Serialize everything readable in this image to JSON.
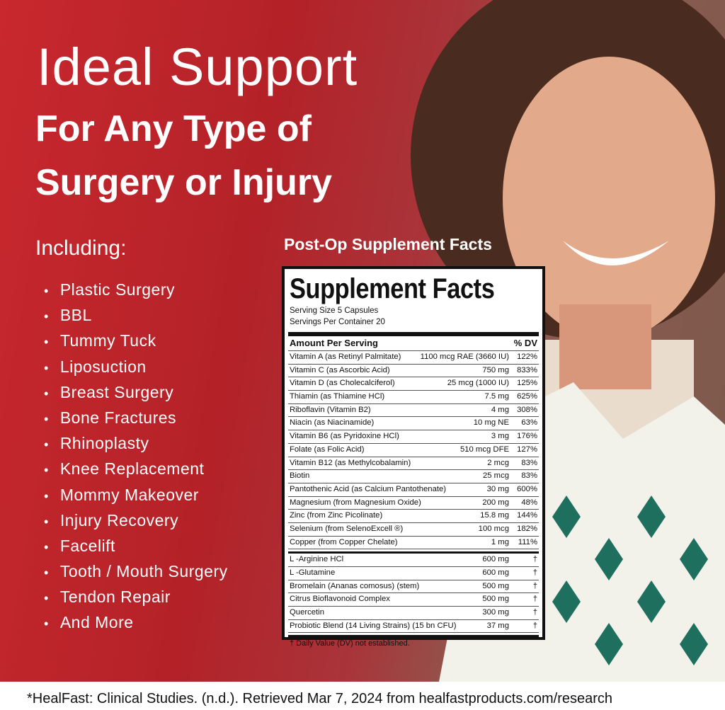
{
  "header": {
    "title": "Ideal Support",
    "subtitle_line1": "For Any Type of",
    "subtitle_line2": "Surgery or Injury"
  },
  "including": {
    "label": "Including:",
    "items": [
      "Plastic Surgery",
      "BBL",
      "Tummy Tuck",
      "Liposuction",
      "Breast Surgery",
      "Bone Fractures",
      "Rhinoplasty",
      "Knee Replacement",
      "Mommy Makeover",
      "Injury Recovery",
      "Facelift",
      "Tooth / Mouth Surgery",
      "Tendon Repair",
      "And More"
    ]
  },
  "panel": {
    "caption": "Post-Op Supplement Facts",
    "title": "Supplement Facts",
    "serving_size": "Serving Size 5 Capsules",
    "servings_per_container": "Servings Per Container 20",
    "header": {
      "amount": "Amount Per Serving",
      "dv": "% DV"
    },
    "vitamins": [
      [
        "Vitamin A (as Retinyl Palmitate)",
        "1100 mcg RAE (3660 IU)",
        "122%"
      ],
      [
        "Vitamin C (as Ascorbic Acid)",
        "750 mg",
        "833%"
      ],
      [
        "Vitamin D (as Cholecalciferol)",
        "25 mcg (1000 IU)",
        "125%"
      ],
      [
        "Thiamin (as Thiamine HCl)",
        "7.5 mg",
        "625%"
      ],
      [
        "Riboflavin (Vitamin B2)",
        "4 mg",
        "308%"
      ],
      [
        "Niacin (as Niacinamide)",
        "10 mg NE",
        "63%"
      ],
      [
        "Vitamin B6 (as Pyridoxine HCl)",
        "3 mg",
        "176%"
      ],
      [
        "Folate (as Folic Acid)",
        "510 mcg DFE",
        "127%"
      ],
      [
        "Vitamin B12 (as Methylcobalamin)",
        "2 mcg",
        "83%"
      ],
      [
        "Biotin",
        "25 mcg",
        "83%"
      ],
      [
        "Pantothenic Acid (as Calcium Pantothenate)",
        "30 mg",
        "600%"
      ],
      [
        "Magnesium (from Magnesium Oxide)",
        "200 mg",
        "48%"
      ],
      [
        "Zinc (from Zinc Picolinate)",
        "15.8 mg",
        "144%"
      ],
      [
        "Selenium  (from SelenoExcell ®)",
        "100 mcg",
        "182%"
      ],
      [
        "Copper (from Copper Chelate)",
        "1 mg",
        "111%"
      ]
    ],
    "others": [
      [
        "L -Arginine HCl",
        "600 mg",
        "†"
      ],
      [
        "L -Glutamine",
        "600 mg",
        "†"
      ],
      [
        "Bromelain (Ananas comosus) (stem)",
        "500 mg",
        "†"
      ],
      [
        "Citrus Bioflavonoid Complex",
        "500 mg",
        "†"
      ],
      [
        "Quercetin",
        "300 mg",
        "†"
      ],
      [
        "Probiotic Blend (14 Living Strains) (15 bn CFU)",
        "37 mg",
        "†"
      ]
    ],
    "footnote": "† Daily Value (DV) not established."
  },
  "footer": {
    "citation": "*HealFast: Clinical Studies. (n.d.). Retrieved Mar 7, 2024 from healfastproducts.com/research"
  }
}
